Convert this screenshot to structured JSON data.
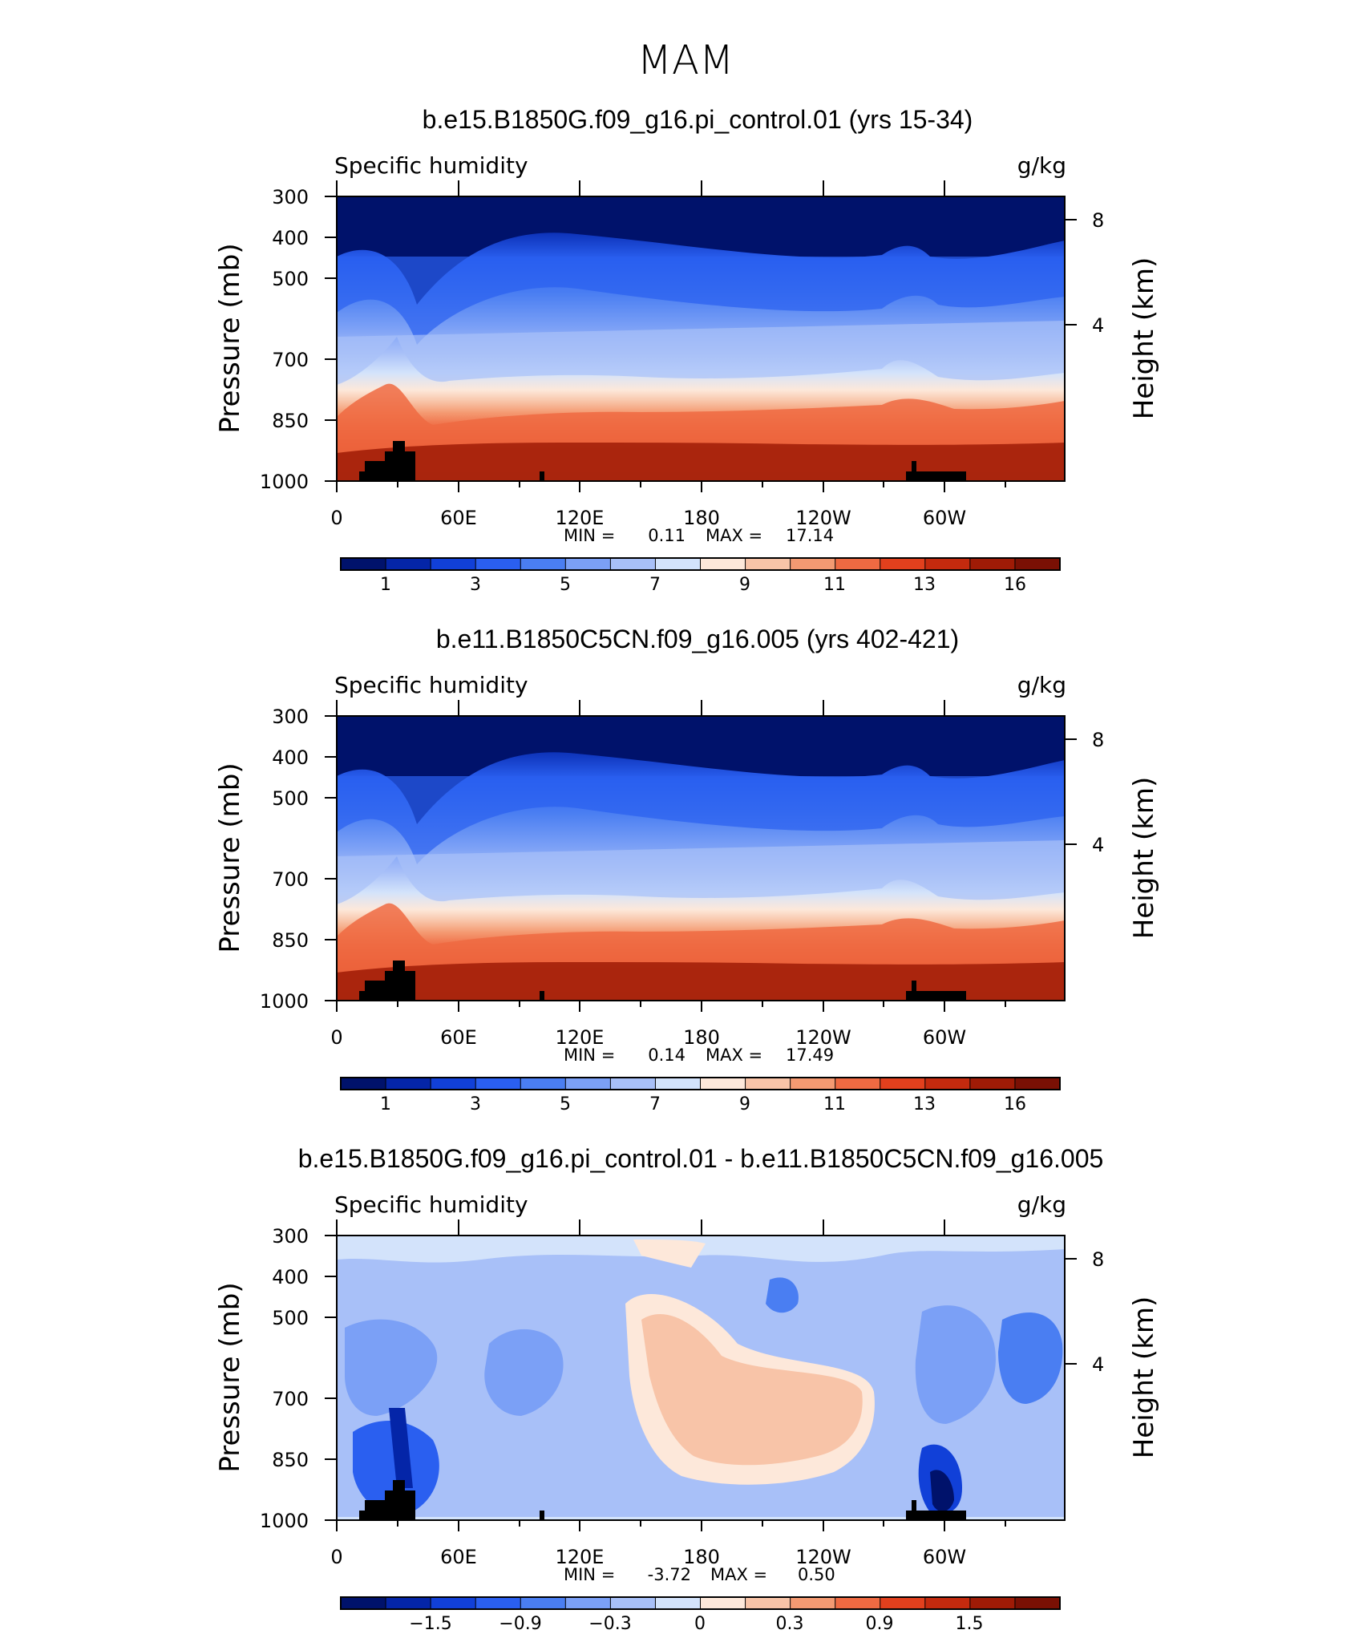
{
  "main_title": "MAM",
  "chart_data": [
    {
      "type": "heatmap",
      "title": "b.e15.B1850G.f09_g16.pi_control.01 (yrs 15-34)",
      "left_label": "Specific humidity",
      "right_label": "g/kg",
      "ylabel": "Pressure (mb)",
      "y2label": "Height (km)",
      "y_ticks": [
        "300",
        "400",
        "500",
        "700",
        "850",
        "1000"
      ],
      "y2_ticks": [
        "8",
        "4"
      ],
      "x_ticks": [
        "0",
        "60E",
        "120E",
        "180",
        "120W",
        "60W"
      ],
      "min_label": "MIN =",
      "min_value": "0.11",
      "max_label": "MAX =",
      "max_value": "17.14",
      "colorbar_labels": [
        "1",
        "3",
        "5",
        "7",
        "9",
        "11",
        "13",
        "16"
      ],
      "colors": [
        "#00126b",
        "#0425a8",
        "#1140d8",
        "#2a5ff0",
        "#4a7ef2",
        "#7ba0f6",
        "#a8c0f8",
        "#d3e3fb",
        "#fde8da",
        "#f8c4a8",
        "#f49a72",
        "#ef6a42",
        "#e2401d",
        "#c42a0e",
        "#9f1b06",
        "#7a1004"
      ]
    },
    {
      "type": "heatmap",
      "title": "b.e11.B1850C5CN.f09_g16.005 (yrs 402-421)",
      "left_label": "Specific humidity",
      "right_label": "g/kg",
      "ylabel": "Pressure (mb)",
      "y2label": "Height (km)",
      "y_ticks": [
        "300",
        "400",
        "500",
        "700",
        "850",
        "1000"
      ],
      "y2_ticks": [
        "8",
        "4"
      ],
      "x_ticks": [
        "0",
        "60E",
        "120E",
        "180",
        "120W",
        "60W"
      ],
      "min_label": "MIN =",
      "min_value": "0.14",
      "max_label": "MAX =",
      "max_value": "17.49",
      "colorbar_labels": [
        "1",
        "3",
        "5",
        "7",
        "9",
        "11",
        "13",
        "16"
      ],
      "colors": [
        "#00126b",
        "#0425a8",
        "#1140d8",
        "#2a5ff0",
        "#4a7ef2",
        "#7ba0f6",
        "#a8c0f8",
        "#d3e3fb",
        "#fde8da",
        "#f8c4a8",
        "#f49a72",
        "#ef6a42",
        "#e2401d",
        "#c42a0e",
        "#9f1b06",
        "#7a1004"
      ]
    },
    {
      "type": "heatmap",
      "title": "b.e15.B1850G.f09_g16.pi_control.01 - b.e11.B1850C5CN.f09_g16.005",
      "left_label": "Specific humidity",
      "right_label": "g/kg",
      "ylabel": "Pressure (mb)",
      "y2label": "Height (km)",
      "y_ticks": [
        "300",
        "400",
        "500",
        "700",
        "850",
        "1000"
      ],
      "y2_ticks": [
        "8",
        "4"
      ],
      "x_ticks": [
        "0",
        "60E",
        "120E",
        "180",
        "120W",
        "60W"
      ],
      "min_label": "MIN =",
      "min_value": "-3.72",
      "max_label": "MAX =",
      "max_value": "0.50",
      "colorbar_labels": [
        "−1.5",
        "−0.9",
        "−0.3",
        "0",
        "0.3",
        "0.9",
        "1.5"
      ],
      "colors": [
        "#00126b",
        "#0425a8",
        "#1140d8",
        "#2a5ff0",
        "#4a7ef2",
        "#7ba0f6",
        "#a8c0f8",
        "#d3e3fb",
        "#fde8da",
        "#f8c4a8",
        "#f49a72",
        "#ef6a42",
        "#e2401d",
        "#c42a0e",
        "#9f1b06",
        "#7a1004"
      ]
    }
  ]
}
